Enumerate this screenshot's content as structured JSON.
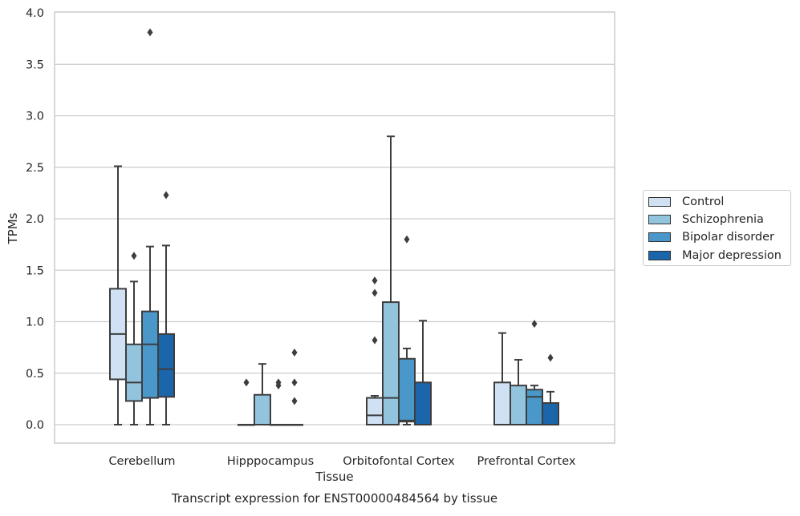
{
  "chart_data": {
    "type": "boxplot",
    "title": "Transcript expression for ENST00000484564 by tissue",
    "xlabel": "Tissue",
    "ylabel": "TPMs",
    "ylim": [
      -0.18,
      4.0
    ],
    "yticks": [
      0.0,
      0.5,
      1.0,
      1.5,
      2.0,
      2.5,
      3.0,
      3.5,
      4.0
    ],
    "ytick_labels": [
      "0.0",
      "0.5",
      "1.0",
      "1.5",
      "2.0",
      "2.5",
      "3.0",
      "3.5",
      "4.0"
    ],
    "grid": true,
    "legend_position": "right",
    "categories": [
      "Cerebellum",
      "Hipppocampus",
      "Orbitofontal Cortex",
      "Prefrontal Cortex"
    ],
    "series": [
      {
        "name": "Control",
        "color": "#cfe1f2",
        "boxes": [
          {
            "whisker_low": 0.0,
            "q1": 0.44,
            "median": 0.88,
            "q3": 1.32,
            "whisker_high": 2.51,
            "outliers": []
          },
          {
            "whisker_low": 0.0,
            "q1": 0.0,
            "median": 0.0,
            "q3": 0.0,
            "whisker_high": 0.0,
            "outliers": [
              0.41
            ]
          },
          {
            "whisker_low": 0.0,
            "q1": 0.0,
            "median": 0.09,
            "q3": 0.26,
            "whisker_high": 0.28,
            "outliers": [
              0.82,
              1.28,
              1.4
            ]
          },
          {
            "whisker_low": 0.0,
            "q1": 0.0,
            "median": 0.0,
            "q3": 0.41,
            "whisker_high": 0.89,
            "outliers": []
          }
        ]
      },
      {
        "name": "Schizophrenia",
        "color": "#93c4de",
        "boxes": [
          {
            "whisker_low": 0.0,
            "q1": 0.23,
            "median": 0.41,
            "q3": 0.78,
            "whisker_high": 1.39,
            "outliers": [
              1.64
            ]
          },
          {
            "whisker_low": 0.0,
            "q1": 0.0,
            "median": 0.0,
            "q3": 0.29,
            "whisker_high": 0.59,
            "outliers": []
          },
          {
            "whisker_low": 0.0,
            "q1": 0.0,
            "median": 0.26,
            "q3": 1.19,
            "whisker_high": 2.8,
            "outliers": []
          },
          {
            "whisker_low": 0.0,
            "q1": 0.0,
            "median": 0.0,
            "q3": 0.38,
            "whisker_high": 0.63,
            "outliers": []
          }
        ]
      },
      {
        "name": "Bipolar disorder",
        "color": "#4a98c9",
        "boxes": [
          {
            "whisker_low": 0.0,
            "q1": 0.26,
            "median": 0.78,
            "q3": 1.1,
            "whisker_high": 1.73,
            "outliers": [
              3.81
            ]
          },
          {
            "whisker_low": 0.0,
            "q1": 0.0,
            "median": 0.0,
            "q3": 0.0,
            "whisker_high": 0.0,
            "outliers": [
              0.38,
              0.41
            ]
          },
          {
            "whisker_low": 0.0,
            "q1": 0.03,
            "median": 0.04,
            "q3": 0.64,
            "whisker_high": 0.74,
            "outliers": [
              1.8
            ]
          },
          {
            "whisker_low": 0.0,
            "q1": 0.0,
            "median": 0.27,
            "q3": 0.34,
            "whisker_high": 0.38,
            "outliers": [
              0.98
            ]
          }
        ]
      },
      {
        "name": "Major depression",
        "color": "#1b65ab",
        "boxes": [
          {
            "whisker_low": 0.0,
            "q1": 0.27,
            "median": 0.54,
            "q3": 0.88,
            "whisker_high": 1.74,
            "outliers": [
              2.23
            ]
          },
          {
            "whisker_low": 0.0,
            "q1": 0.0,
            "median": 0.0,
            "q3": 0.0,
            "whisker_high": 0.0,
            "outliers": [
              0.23,
              0.41,
              0.7
            ]
          },
          {
            "whisker_low": 0.0,
            "q1": 0.0,
            "median": 0.0,
            "q3": 0.41,
            "whisker_high": 1.01,
            "outliers": []
          },
          {
            "whisker_low": 0.0,
            "q1": 0.0,
            "median": 0.0,
            "q3": 0.21,
            "whisker_high": 0.32,
            "outliers": [
              0.65
            ]
          }
        ]
      }
    ]
  }
}
